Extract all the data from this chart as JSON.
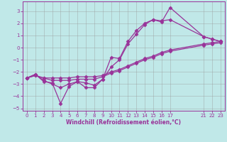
{
  "xlabel": "Windchill (Refroidissement éolien,°C)",
  "background_color": "#c0e8e8",
  "grid_color": "#999999",
  "line_color": "#993399",
  "xlim": [
    -0.5,
    23.5
  ],
  "ylim": [
    -5.2,
    3.8
  ],
  "yticks": [
    -5,
    -4,
    -3,
    -2,
    -1,
    0,
    1,
    2,
    3
  ],
  "xtick_positions": [
    0,
    1,
    2,
    3,
    4,
    5,
    6,
    7,
    8,
    9,
    10,
    11,
    12,
    13,
    14,
    15,
    16,
    17,
    21,
    22,
    23
  ],
  "xtick_labels": [
    "0",
    "1",
    "2",
    "3",
    "4",
    "5",
    "6",
    "7",
    "8",
    "9",
    "10",
    "11",
    "12",
    "13",
    "14",
    "15",
    "16",
    "17",
    "21",
    "22",
    "23"
  ],
  "lines": [
    {
      "x": [
        0,
        1,
        2,
        3,
        4,
        5,
        6,
        7,
        8,
        9,
        10,
        11,
        12,
        13,
        14,
        15,
        16,
        17,
        21,
        22,
        23
      ],
      "y": [
        -2.5,
        -2.2,
        -2.8,
        -2.9,
        -4.6,
        -3.2,
        -2.8,
        -3.3,
        -3.3,
        -2.6,
        -0.8,
        -0.9,
        0.5,
        1.4,
        2.0,
        2.3,
        2.1,
        3.3,
        0.9,
        0.7,
        0.5
      ],
      "has_markers": true
    },
    {
      "x": [
        0,
        1,
        2,
        3,
        4,
        5,
        6,
        7,
        8,
        9,
        10,
        11,
        12,
        13,
        14,
        15,
        16,
        17,
        21,
        22,
        23
      ],
      "y": [
        -2.5,
        -2.2,
        -2.7,
        -3.0,
        -3.3,
        -3.0,
        -2.8,
        -2.9,
        -3.1,
        -2.6,
        -1.6,
        -1.0,
        0.3,
        1.1,
        1.9,
        2.3,
        2.2,
        2.3,
        0.9,
        0.7,
        0.5
      ],
      "has_markers": true
    },
    {
      "x": [
        0,
        1,
        2,
        3,
        4,
        5,
        6,
        7,
        8,
        9,
        10,
        11,
        12,
        13,
        14,
        15,
        16,
        17,
        21,
        22,
        23
      ],
      "y": [
        -2.5,
        -2.3,
        -2.5,
        -2.5,
        -2.5,
        -2.5,
        -2.4,
        -2.4,
        -2.4,
        -2.3,
        -2.0,
        -1.8,
        -1.5,
        -1.2,
        -0.9,
        -0.7,
        -0.4,
        -0.2,
        0.3,
        0.4,
        0.5
      ],
      "has_markers": true
    },
    {
      "x": [
        0,
        1,
        2,
        3,
        4,
        5,
        6,
        7,
        8,
        9,
        10,
        11,
        12,
        13,
        14,
        15,
        16,
        17,
        21,
        22,
        23
      ],
      "y": [
        -2.5,
        -2.3,
        -2.5,
        -2.7,
        -2.7,
        -2.7,
        -2.6,
        -2.6,
        -2.6,
        -2.4,
        -2.1,
        -1.9,
        -1.6,
        -1.3,
        -1.0,
        -0.8,
        -0.5,
        -0.3,
        0.2,
        0.3,
        0.4
      ],
      "has_markers": true
    }
  ],
  "marker": "D",
  "markersize": 2.5,
  "linewidth": 0.9
}
